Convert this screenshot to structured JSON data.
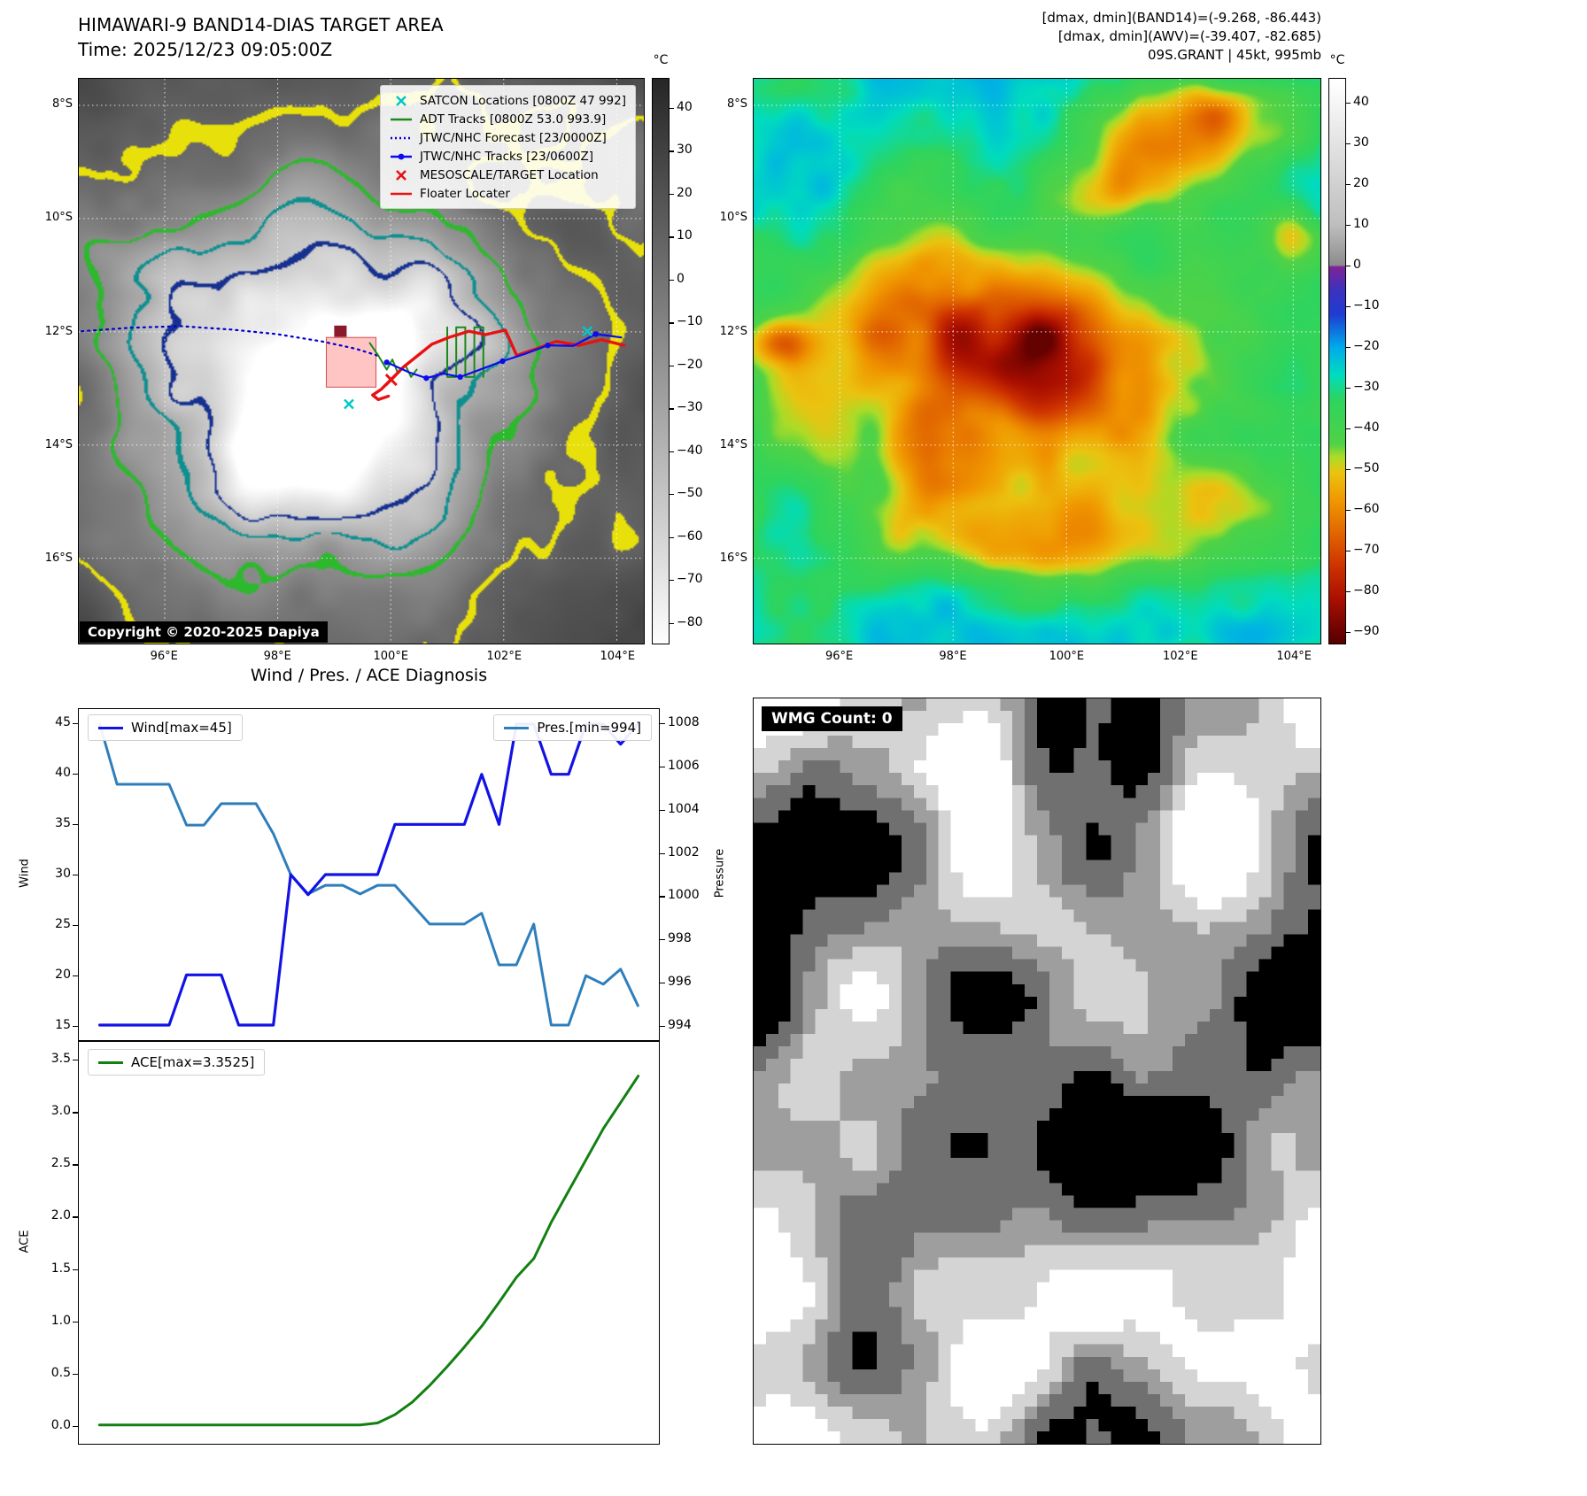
{
  "band14": {
    "title": "HIMAWARI-9 BAND14-DIAS TARGET AREA",
    "time_line": "Time: 2025/12/23 09:05:00Z",
    "copyright": "Copyright © 2020-2025 Dapiya",
    "lat_ticks": [
      "8°S",
      "10°S",
      "12°S",
      "14°S",
      "16°S"
    ],
    "lon_ticks": [
      "96°E",
      "98°E",
      "100°E",
      "102°E",
      "104°E"
    ],
    "colorbar": {
      "unit": "°C",
      "ticks": [
        40,
        30,
        20,
        10,
        0,
        -10,
        -20,
        -30,
        -40,
        -50,
        -60,
        -70,
        -80
      ]
    },
    "legend": [
      {
        "label": "SATCON Locations [0800Z 47 992]",
        "marker": "x",
        "color": "#00c8c8"
      },
      {
        "label": "ADT Tracks [0800Z 53.0 993.9]",
        "marker": "line",
        "color": "#1a8a1a"
      },
      {
        "label": "JTWC/NHC Forecast [23/0000Z]",
        "marker": "dotted",
        "color": "#0000cc"
      },
      {
        "label": "JTWC/NHC Tracks [23/0600Z]",
        "marker": "line-dot",
        "color": "#0b0bee"
      },
      {
        "label": "MESOSCALE/TARGET Location",
        "marker": "x",
        "color": "#e81212"
      },
      {
        "label": "Floater Locater",
        "marker": "line",
        "color": "#e81212"
      }
    ],
    "tracks": {
      "forecast": [
        [
          0.005,
          0.447
        ],
        [
          0.09,
          0.441
        ],
        [
          0.18,
          0.438
        ],
        [
          0.27,
          0.444
        ],
        [
          0.35,
          0.452
        ],
        [
          0.43,
          0.465
        ],
        [
          0.49,
          0.478
        ],
        [
          0.535,
          0.492
        ]
      ],
      "jtwc": [
        [
          0.545,
          0.502
        ],
        [
          0.585,
          0.52
        ],
        [
          0.615,
          0.53
        ],
        [
          0.645,
          0.522
        ],
        [
          0.675,
          0.528
        ],
        [
          0.71,
          0.515
        ],
        [
          0.75,
          0.5
        ],
        [
          0.79,
          0.487
        ],
        [
          0.83,
          0.472
        ],
        [
          0.875,
          0.473
        ],
        [
          0.915,
          0.452
        ],
        [
          0.96,
          0.458
        ]
      ],
      "adt": [
        [
          0.515,
          0.468
        ],
        [
          0.53,
          0.49
        ],
        [
          0.545,
          0.515
        ],
        [
          0.555,
          0.497
        ],
        [
          0.565,
          0.522
        ],
        [
          0.578,
          0.507
        ],
        [
          0.588,
          0.528
        ],
        [
          0.598,
          0.515
        ]
      ],
      "adt_hatch": [
        [
          0.652,
          0.44
        ],
        [
          0.652,
          0.528
        ],
        [
          0.668,
          0.528
        ],
        [
          0.668,
          0.44
        ],
        [
          0.684,
          0.44
        ],
        [
          0.684,
          0.528
        ],
        [
          0.7,
          0.528
        ],
        [
          0.7,
          0.44
        ],
        [
          0.716,
          0.44
        ],
        [
          0.716,
          0.528
        ]
      ],
      "floater": [
        [
          0.965,
          0.472
        ],
        [
          0.925,
          0.462
        ],
        [
          0.885,
          0.472
        ],
        [
          0.845,
          0.465
        ],
        [
          0.81,
          0.478
        ],
        [
          0.775,
          0.49
        ],
        [
          0.755,
          0.445
        ],
        [
          0.72,
          0.453
        ],
        [
          0.69,
          0.447
        ],
        [
          0.655,
          0.458
        ],
        [
          0.625,
          0.47
        ],
        [
          0.6,
          0.49
        ],
        [
          0.575,
          0.51
        ],
        [
          0.555,
          0.53
        ],
        [
          0.535,
          0.55
        ],
        [
          0.52,
          0.56
        ],
        [
          0.53,
          0.568
        ],
        [
          0.548,
          0.562
        ]
      ],
      "satcon_x": [
        [
          0.478,
          0.576
        ],
        [
          0.9,
          0.447
        ]
      ],
      "target_x": [
        [
          0.553,
          0.533
        ]
      ],
      "pink_box": [
        0.438,
        0.458,
        0.088,
        0.088
      ],
      "maroon_box": [
        0.452,
        0.437,
        0.022,
        0.02
      ]
    }
  },
  "awv": {
    "header": [
      "[dmax, dmin](BAND14)=(-9.268, -86.443)",
      "[dmax, dmin](AWV)=(-39.407, -82.685)",
      "09S.GRANT | 45kt, 995mb"
    ],
    "lat_ticks": [
      "8°S",
      "10°S",
      "12°S",
      "14°S",
      "16°S"
    ],
    "lon_ticks": [
      "96°E",
      "98°E",
      "100°E",
      "102°E",
      "104°E"
    ],
    "colorbar": {
      "unit": "°C",
      "ticks": [
        40,
        30,
        20,
        10,
        0,
        -10,
        -20,
        -30,
        -40,
        -50,
        -60,
        -70,
        -80,
        -90
      ]
    }
  },
  "wmg": {
    "label": "WMG Count: 0"
  },
  "diagnosis": {
    "title": "Wind / Pres. / ACE Diagnosis"
  },
  "chart_data": [
    {
      "type": "line",
      "panel": "wind_pressure",
      "title": "Wind / Pres. / ACE Diagnosis",
      "ylabel_left": "Wind",
      "ylabel_right": "Pressure",
      "yticks_left": [
        15,
        20,
        25,
        30,
        35,
        40,
        45
      ],
      "yticks_right": [
        994,
        996,
        998,
        1000,
        1002,
        1004,
        1006,
        1008
      ],
      "ylim_left": [
        13.5,
        46.5
      ],
      "ylim_right": [
        993.3,
        1008.7
      ],
      "grid": false,
      "series": [
        {
          "name": "Wind[max=45]",
          "color": "#1212e6",
          "axis": "left",
          "values": [
            15,
            15,
            15,
            15,
            15,
            20,
            20,
            20,
            15,
            15,
            15,
            30,
            28,
            30,
            30,
            30,
            30,
            35,
            35,
            35,
            35,
            35,
            40,
            35,
            45,
            45,
            40,
            40,
            45,
            45,
            43,
            45
          ]
        },
        {
          "name": "Pres.[min=994]",
          "color": "#2e7ebb",
          "axis": "right",
          "values": [
            1008,
            1005.2,
            1005.2,
            1005.2,
            1005.2,
            1003.3,
            1003.3,
            1004.3,
            1004.3,
            1004.3,
            1002.9,
            1001.0,
            1000.1,
            1000.5,
            1000.5,
            1000.1,
            1000.5,
            1000.5,
            999.6,
            998.7,
            998.7,
            998.7,
            999.2,
            996.8,
            996.8,
            998.7,
            994.0,
            994.0,
            996.3,
            995.9,
            996.6,
            994.9
          ]
        }
      ]
    },
    {
      "type": "line",
      "panel": "ace",
      "ylabel": "ACE",
      "yticks": [
        0.0,
        0.5,
        1.0,
        1.5,
        2.0,
        2.5,
        3.0,
        3.5
      ],
      "ylim": [
        -0.18,
        3.68
      ],
      "grid": false,
      "series": [
        {
          "name": "ACE[max=3.3525]",
          "color": "#118011",
          "values": [
            0,
            0,
            0,
            0,
            0,
            0,
            0,
            0,
            0,
            0,
            0,
            0,
            0,
            0,
            0,
            0,
            0.02,
            0.1,
            0.22,
            0.38,
            0.56,
            0.75,
            0.95,
            1.18,
            1.42,
            1.6,
            1.95,
            2.25,
            2.55,
            2.85,
            3.1,
            3.3525
          ]
        }
      ]
    }
  ]
}
